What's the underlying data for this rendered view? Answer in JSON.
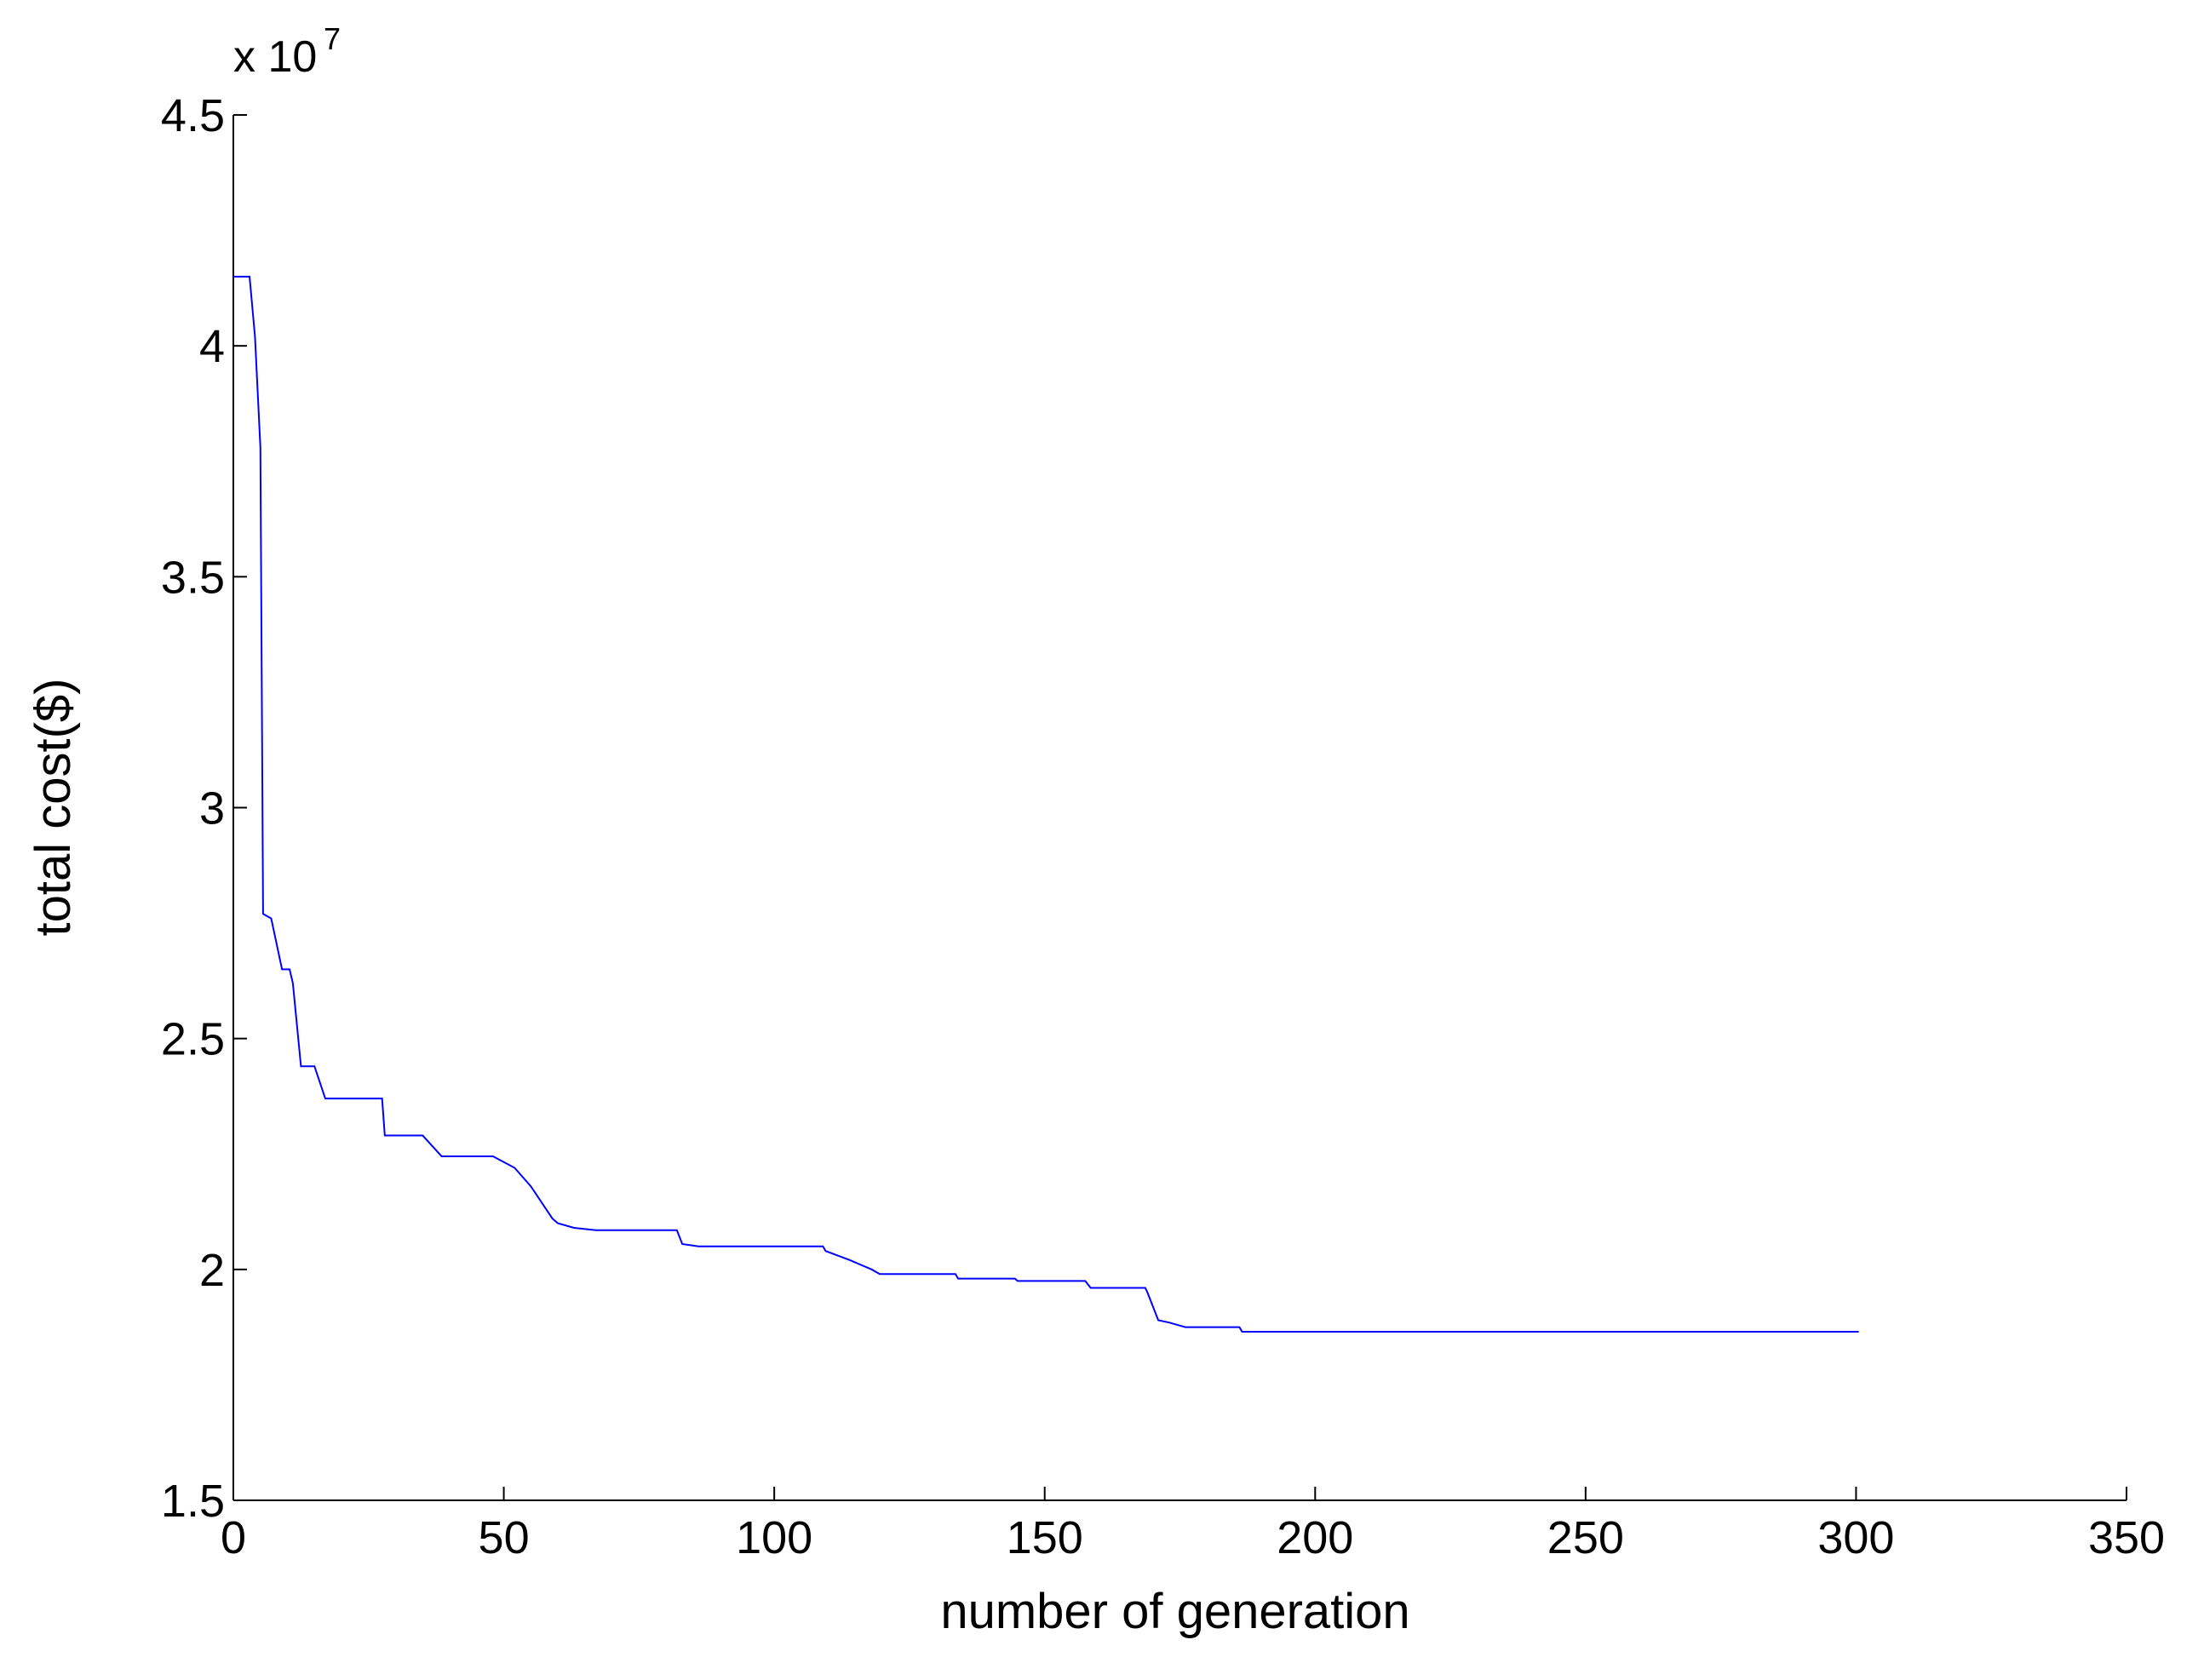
{
  "chart_data": {
    "type": "line",
    "x_label": "number of generation",
    "y_label": "total cost($)",
    "y_multiplier": "x 10",
    "y_multiplier_exponent": "7",
    "xlim": [
      0,
      350
    ],
    "xticks": [
      0,
      50,
      100,
      150,
      200,
      250,
      300,
      350
    ],
    "ylim": [
      1.5,
      4.5
    ],
    "yticks": [
      1.5,
      2,
      2.5,
      3,
      3.5,
      4,
      4.5
    ],
    "grid": false,
    "series": [
      {
        "color": "#0000ff",
        "x": [
          0,
          3,
          4,
          5,
          5.5,
          7,
          9,
          10.4,
          11,
          12.5,
          15,
          17,
          27.5,
          28,
          35,
          38.5,
          48,
          52,
          55,
          59,
          60,
          63,
          67,
          82,
          83,
          86,
          109,
          109.5,
          114,
          118,
          119.5,
          133.5,
          134,
          144.5,
          145,
          157.5,
          158.5,
          168.6,
          169,
          171,
          173,
          176,
          186,
          186.5,
          300.5
        ],
        "values": [
          4.15,
          4.15,
          4.02,
          3.78,
          2.77,
          2.76,
          2.65,
          2.65,
          2.62,
          2.44,
          2.44,
          2.37,
          2.37,
          2.29,
          2.29,
          2.245,
          2.245,
          2.22,
          2.18,
          2.11,
          2.1,
          2.09,
          2.085,
          2.085,
          2.055,
          2.05,
          2.05,
          2.04,
          2.02,
          2.0,
          1.99,
          1.99,
          1.98,
          1.98,
          1.975,
          1.975,
          1.96,
          1.96,
          1.95,
          1.89,
          1.885,
          1.875,
          1.875,
          1.865,
          1.865
        ]
      }
    ]
  }
}
